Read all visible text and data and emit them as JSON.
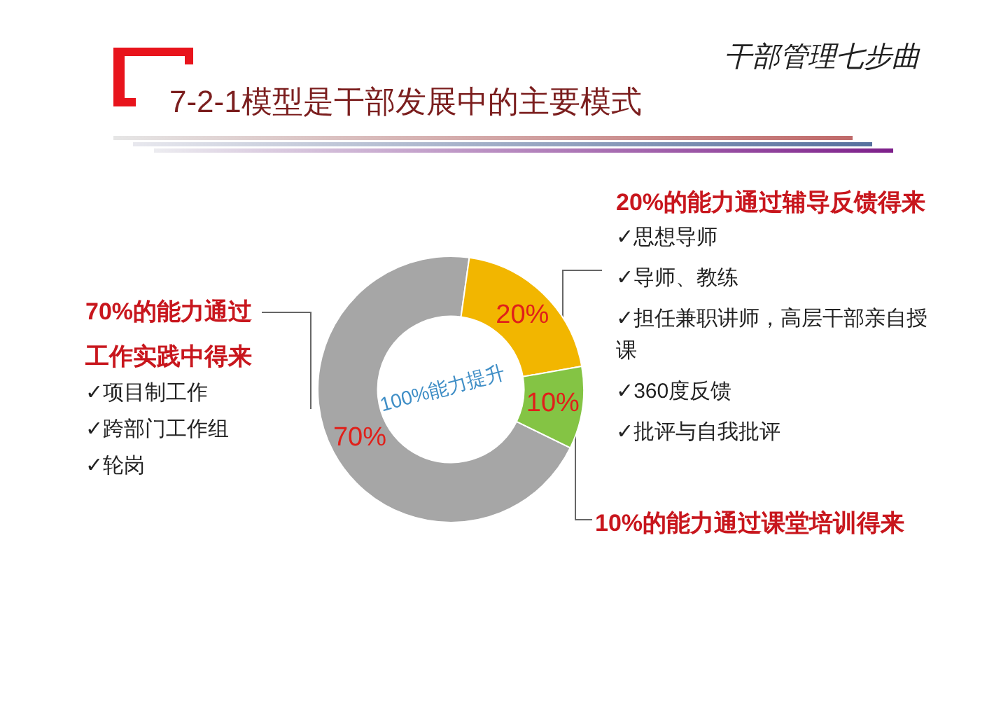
{
  "chart_data": {
    "type": "donut",
    "title": "7-2-1模型是干部发展中的主要模式",
    "subtitle": "干部管理七步曲",
    "categories": [
      "70%的能力通过工作实践中得来",
      "20%的能力通过辅导反馈得来",
      "10%的能力通过课堂培训得来"
    ],
    "values": [
      70,
      20,
      10
    ],
    "colors": [
      "#a6a6a6",
      "#f2b600",
      "#84c444"
    ],
    "value_labels": [
      "70%",
      "20%",
      "10%"
    ],
    "annotations": [
      "100%能力提升",
      "✓项目制工作",
      "✓跨部门工作组",
      "✓轮岗",
      "✓思想导师",
      "✓导师、教练",
      "✓担任兼职讲师，高层干部亲自授课",
      "✓360度反馈",
      "✓批评与自我批评"
    ]
  }
}
